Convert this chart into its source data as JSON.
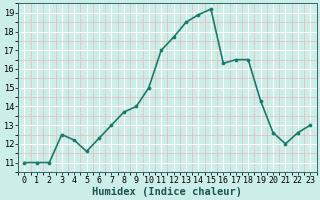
{
  "xlabel": "Humidex (Indice chaleur)",
  "x": [
    0,
    1,
    2,
    3,
    4,
    5,
    6,
    7,
    8,
    9,
    10,
    11,
    12,
    13,
    14,
    15,
    16,
    17,
    18,
    19,
    20,
    21,
    22,
    23
  ],
  "y": [
    11.0,
    11.0,
    11.0,
    12.5,
    12.2,
    11.6,
    12.3,
    13.0,
    13.7,
    14.0,
    15.0,
    17.0,
    17.7,
    18.5,
    18.9,
    19.2,
    16.3,
    16.5,
    16.5,
    14.3,
    12.6,
    12.0,
    12.6,
    13.0
  ],
  "line_color": "#1a7a6a",
  "marker": "o",
  "marker_size": 2.2,
  "bg_color": "#cceee8",
  "grid_color": "#ffffff",
  "grid_minor_color": "#ddf5f0",
  "ylim": [
    10.5,
    19.5
  ],
  "yticks": [
    11,
    12,
    13,
    14,
    15,
    16,
    17,
    18,
    19
  ],
  "xlim": [
    -0.5,
    23.5
  ],
  "xticks": [
    0,
    1,
    2,
    3,
    4,
    5,
    6,
    7,
    8,
    9,
    10,
    11,
    12,
    13,
    14,
    15,
    16,
    17,
    18,
    19,
    20,
    21,
    22,
    23
  ],
  "xlabel_fontsize": 7.5,
  "tick_fontsize": 6,
  "line_width": 1.2,
  "spine_color": "#336666"
}
